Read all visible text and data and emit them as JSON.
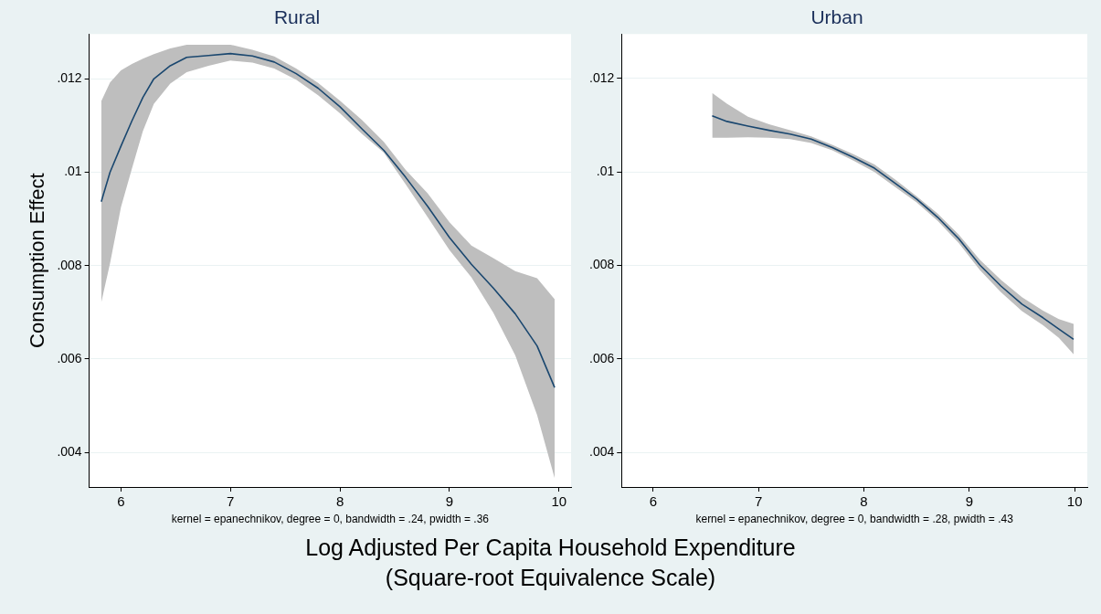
{
  "chart_data": [
    {
      "type": "line",
      "title": "Rural",
      "ylabel": "Consumption Effect",
      "xlabel": "Log Adjusted Per Capita Household Expenditure\n(Square-root Equivalence Scale)",
      "annotations": [
        "kernel = epanechnikov, degree = 0, bandwidth = .24, pwidth = .36"
      ],
      "x": [
        5.82,
        5.9,
        6.0,
        6.1,
        6.2,
        6.3,
        6.45,
        6.6,
        6.8,
        7.0,
        7.2,
        7.4,
        7.6,
        7.8,
        8.0,
        8.2,
        8.4,
        8.6,
        8.8,
        9.0,
        9.2,
        9.4,
        9.6,
        9.8,
        9.96
      ],
      "series": [
        {
          "color": "#1a476f",
          "values": [
            0.00937,
            0.01,
            0.01056,
            0.0111,
            0.0116,
            0.012,
            0.01228,
            0.01246,
            0.0125,
            0.01254,
            0.01249,
            0.01236,
            0.01211,
            0.0118,
            0.0114,
            0.01093,
            0.01047,
            0.00989,
            0.00927,
            0.0086,
            0.00803,
            0.00752,
            0.00697,
            0.00628,
            0.00539
          ],
          "upper": [
            0.01152,
            0.01192,
            0.01218,
            0.01232,
            0.01243,
            0.01253,
            0.01265,
            0.01273,
            0.01273,
            0.01273,
            0.01262,
            0.01248,
            0.01222,
            0.01191,
            0.01153,
            0.01112,
            0.01065,
            0.01005,
            0.00955,
            0.00893,
            0.00843,
            0.00816,
            0.00788,
            0.00773,
            0.00728
          ],
          "lower": [
            0.00721,
            0.00805,
            0.00925,
            0.01008,
            0.01088,
            0.01146,
            0.0119,
            0.01214,
            0.01228,
            0.01239,
            0.01235,
            0.01222,
            0.01198,
            0.01165,
            0.01126,
            0.01082,
            0.01042,
            0.00974,
            0.00904,
            0.00833,
            0.00775,
            0.00699,
            0.00608,
            0.0048,
            0.00345
          ]
        }
      ],
      "xlim": [
        5.71,
        10.11
      ],
      "ylim": [
        0.00326,
        0.01296
      ],
      "xticks": [
        6,
        7,
        8,
        9,
        10
      ],
      "yticks": [
        {
          "value": 0.004,
          "label": ".004"
        },
        {
          "value": 0.006,
          "label": ".006"
        },
        {
          "value": 0.008,
          "label": ".008"
        },
        {
          "value": 0.01,
          "label": ".01"
        },
        {
          "value": 0.012,
          "label": ".012"
        }
      ],
      "grid": "y",
      "legend": false
    },
    {
      "type": "line",
      "title": "Urban",
      "annotations": [
        "kernel = epanechnikov, degree = 0, bandwidth = .28, pwidth = .43"
      ],
      "x": [
        6.56,
        6.7,
        6.9,
        7.1,
        7.3,
        7.5,
        7.7,
        7.9,
        8.1,
        8.3,
        8.5,
        8.7,
        8.9,
        9.1,
        9.3,
        9.5,
        9.7,
        9.85,
        9.99
      ],
      "series": [
        {
          "color": "#1a476f",
          "values": [
            0.0112,
            0.01108,
            0.01098,
            0.01089,
            0.01081,
            0.0107,
            0.01052,
            0.01031,
            0.01008,
            0.00975,
            0.00942,
            0.00903,
            0.00857,
            0.00801,
            0.00756,
            0.00717,
            0.00688,
            0.00664,
            0.00642
          ],
          "upper": [
            0.01169,
            0.01146,
            0.01118,
            0.01102,
            0.01089,
            0.01076,
            0.01058,
            0.01038,
            0.01016,
            0.00983,
            0.00948,
            0.00911,
            0.00866,
            0.00812,
            0.00769,
            0.00732,
            0.00703,
            0.00685,
            0.00675
          ],
          "lower": [
            0.01073,
            0.01073,
            0.01074,
            0.01073,
            0.0107,
            0.01062,
            0.01046,
            0.01024,
            0.01,
            0.00967,
            0.00935,
            0.00895,
            0.00848,
            0.0079,
            0.00743,
            0.00702,
            0.00672,
            0.00645,
            0.0061
          ]
        }
      ],
      "xlim": [
        5.7,
        10.12
      ],
      "ylim": [
        0.00326,
        0.01295
      ],
      "xticks": [
        6,
        7,
        8,
        9,
        10
      ],
      "yticks": [
        {
          "value": 0.004,
          "label": ".004"
        },
        {
          "value": 0.006,
          "label": ".006"
        },
        {
          "value": 0.008,
          "label": ".008"
        },
        {
          "value": 0.01,
          "label": ".01"
        },
        {
          "value": 0.012,
          "label": ".012"
        }
      ],
      "grid": "y",
      "legend": false
    }
  ]
}
